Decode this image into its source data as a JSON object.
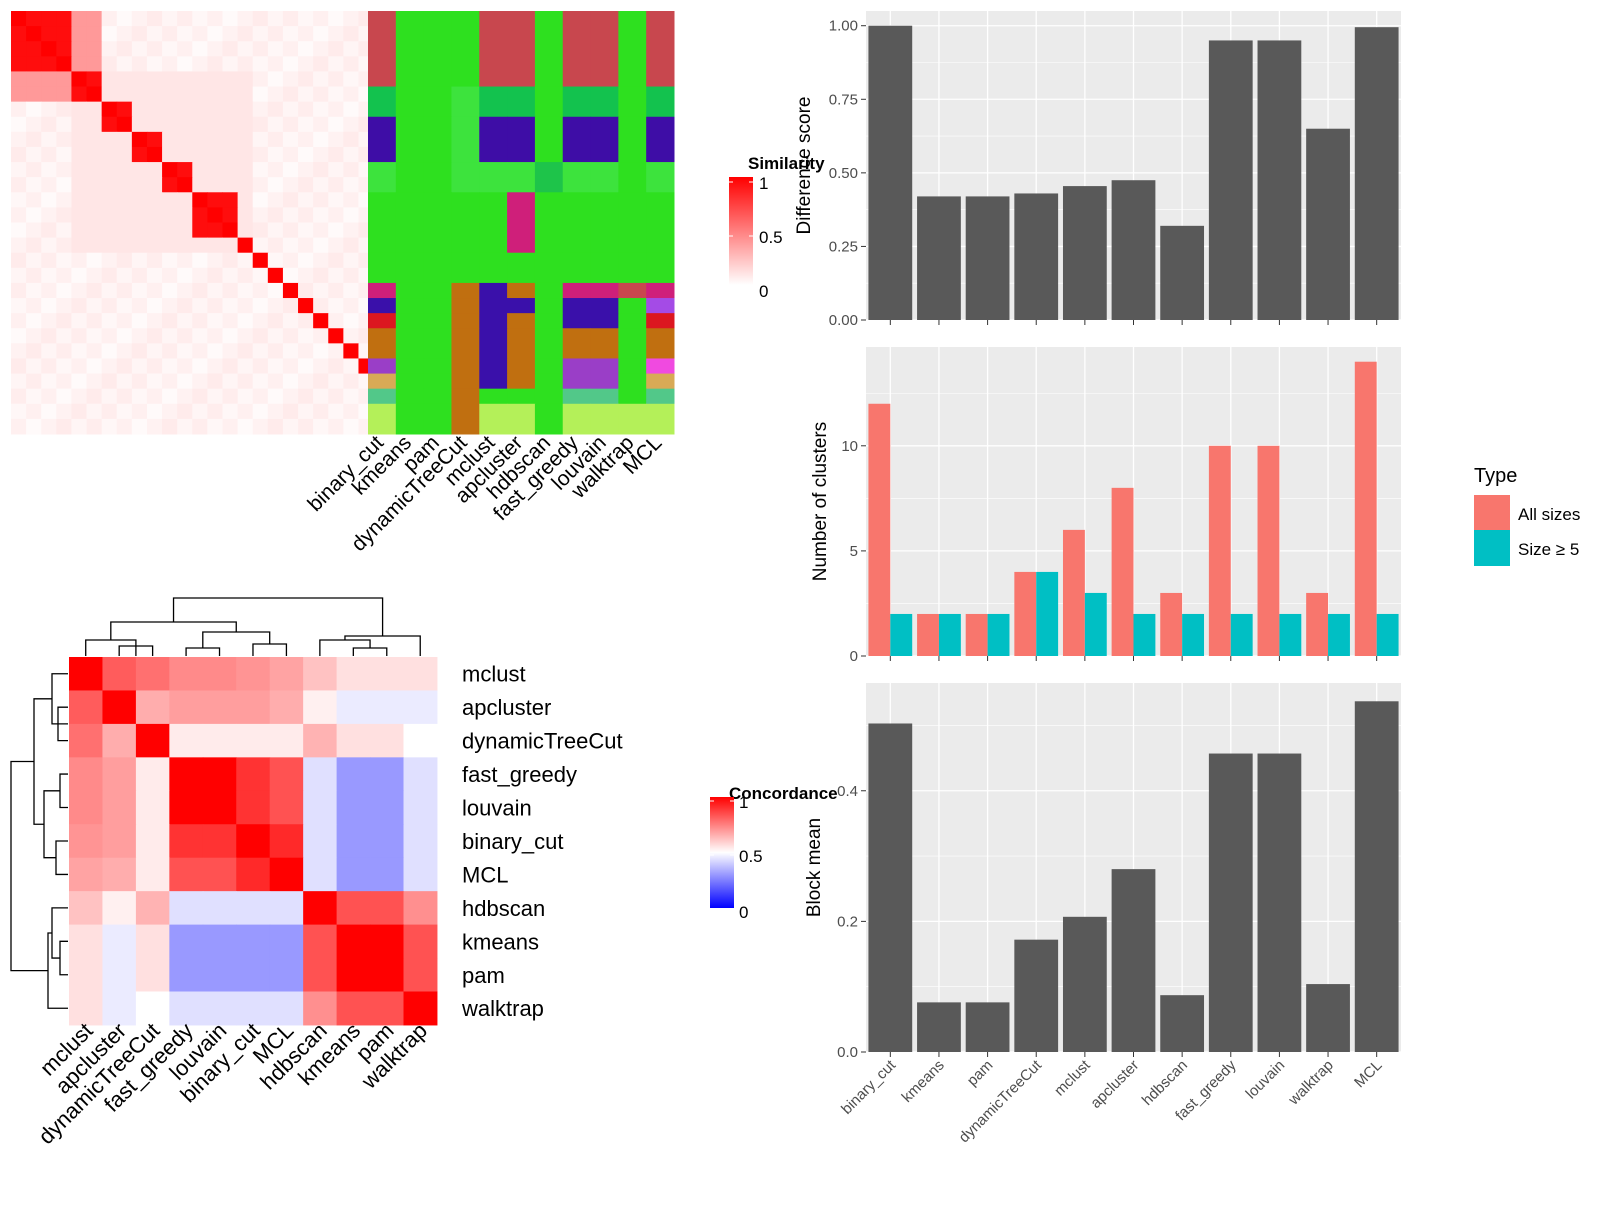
{
  "methods_order": [
    "binary_cut",
    "kmeans",
    "pam",
    "dynamicTreeCut",
    "mclust",
    "apcluster",
    "hdbscan",
    "fast_greedy",
    "louvain",
    "walktrap",
    "MCL"
  ],
  "colors": {
    "bar": "#595959",
    "panel_bg": "#ebebeb",
    "grid": "#ffffff",
    "all_sizes": "#f8766d",
    "size_ge5": "#00bfc4",
    "heat_high": "#ff0000",
    "heat_mid": "#ffffff",
    "heat_low": "#0000ff",
    "top_row": "#c8474e"
  },
  "similarity_heatmap": {
    "legend_title": "Similarity",
    "legend_ticks": [
      "1",
      "0.5",
      "0"
    ],
    "legend_values": [
      1,
      0.5,
      0
    ],
    "methods": [
      "binary_cut",
      "kmeans",
      "pam",
      "dynamicTreeCut",
      "mclust",
      "apcluster",
      "hdbscan",
      "fast_greedy",
      "louvain",
      "walktrap",
      "MCL"
    ],
    "n_items": 28,
    "diag_blocks": [
      [
        0,
        3
      ],
      [
        4,
        5
      ],
      [
        6,
        7
      ],
      [
        8,
        9
      ],
      [
        10,
        11
      ],
      [
        12,
        14
      ],
      [
        15,
        15
      ],
      [
        16,
        16
      ],
      [
        17,
        17
      ],
      [
        18,
        18
      ],
      [
        19,
        19
      ],
      [
        20,
        20
      ],
      [
        21,
        21
      ],
      [
        22,
        22
      ],
      [
        23,
        23
      ],
      [
        24,
        24
      ],
      [
        25,
        26
      ],
      [
        27,
        27
      ]
    ],
    "cluster_palette": [
      "#c8474e",
      "#13c24e",
      "#3e0da6",
      "#3de33d",
      "#2ee01f",
      "#1ec44a",
      "#cf1f7a",
      "#c06f10",
      "#c8474e",
      "#3a10aa",
      "#a44be6",
      "#dc1720",
      "#c06f10",
      "#f04ae0",
      "#9a3ec7",
      "#d8aa56",
      "#52c889",
      "#b4f059"
    ],
    "assignments": [
      [
        0,
        4,
        4,
        4,
        0,
        0,
        4,
        0,
        0,
        4,
        0
      ],
      [
        1,
        4,
        4,
        3,
        1,
        1,
        4,
        1,
        1,
        4,
        1
      ],
      [
        2,
        4,
        4,
        3,
        2,
        2,
        4,
        2,
        2,
        4,
        2
      ],
      [
        3,
        4,
        4,
        3,
        3,
        3,
        5,
        3,
        3,
        4,
        3
      ],
      [
        4,
        4,
        4,
        4,
        4,
        6,
        4,
        4,
        4,
        4,
        4
      ],
      [
        4,
        4,
        4,
        4,
        4,
        4,
        4,
        4,
        4,
        4,
        4
      ],
      [
        6,
        4,
        4,
        7,
        9,
        7,
        4,
        6,
        6,
        8,
        6
      ],
      [
        9,
        4,
        4,
        7,
        9,
        9,
        4,
        9,
        9,
        4,
        10
      ],
      [
        11,
        4,
        4,
        7,
        9,
        7,
        4,
        9,
        9,
        4,
        11
      ],
      [
        12,
        4,
        4,
        7,
        9,
        7,
        4,
        12,
        12,
        4,
        12
      ],
      [
        14,
        4,
        4,
        7,
        9,
        7,
        4,
        14,
        14,
        4,
        13
      ],
      [
        15,
        4,
        4,
        7,
        9,
        7,
        4,
        14,
        14,
        4,
        15
      ],
      [
        16,
        4,
        4,
        7,
        4,
        4,
        4,
        16,
        16,
        4,
        16
      ],
      [
        17,
        4,
        4,
        7,
        17,
        17,
        4,
        17,
        17,
        17,
        17
      ]
    ],
    "row_items": [
      [
        0,
        5
      ],
      [
        5,
        7
      ],
      [
        7,
        10
      ],
      [
        10,
        12
      ],
      [
        12,
        16
      ],
      [
        16,
        18
      ],
      [
        18,
        19
      ],
      [
        19,
        20
      ],
      [
        20,
        21
      ],
      [
        21,
        23
      ],
      [
        23,
        24
      ],
      [
        24,
        25
      ],
      [
        25,
        26
      ],
      [
        26,
        28
      ]
    ]
  },
  "concordance_heatmap": {
    "legend_title": "Concordance",
    "legend_ticks": [
      "1",
      "0.5",
      "0"
    ],
    "legend_values": [
      1,
      0.5,
      0
    ],
    "rows": [
      "mclust",
      "apcluster",
      "dynamicTreeCut",
      "fast_greedy",
      "louvain",
      "binary_cut",
      "MCL",
      "hdbscan",
      "kmeans",
      "pam",
      "walktrap"
    ],
    "cols": [
      "mclust",
      "apcluster",
      "dynamicTreeCut",
      "fast_greedy",
      "louvain",
      "binary_cut",
      "MCL",
      "hdbscan",
      "kmeans",
      "pam",
      "walktrap"
    ],
    "matrix": [
      [
        1.0,
        0.82,
        0.78,
        0.73,
        0.73,
        0.71,
        0.68,
        0.62,
        0.56,
        0.56,
        0.56
      ],
      [
        0.82,
        1.0,
        0.66,
        0.69,
        0.69,
        0.69,
        0.66,
        0.53,
        0.46,
        0.46,
        0.46
      ],
      [
        0.78,
        0.66,
        1.0,
        0.54,
        0.54,
        0.54,
        0.54,
        0.65,
        0.56,
        0.56,
        0.5
      ],
      [
        0.73,
        0.69,
        0.54,
        1.0,
        1.0,
        0.9,
        0.84,
        0.44,
        0.3,
        0.3,
        0.44
      ],
      [
        0.73,
        0.69,
        0.54,
        1.0,
        1.0,
        0.9,
        0.84,
        0.44,
        0.3,
        0.3,
        0.44
      ],
      [
        0.71,
        0.69,
        0.54,
        0.9,
        0.9,
        1.0,
        0.92,
        0.44,
        0.3,
        0.3,
        0.44
      ],
      [
        0.68,
        0.66,
        0.54,
        0.84,
        0.84,
        0.92,
        1.0,
        0.44,
        0.3,
        0.3,
        0.44
      ],
      [
        0.62,
        0.53,
        0.65,
        0.44,
        0.44,
        0.44,
        0.44,
        1.0,
        0.84,
        0.84,
        0.72
      ],
      [
        0.56,
        0.46,
        0.56,
        0.3,
        0.3,
        0.3,
        0.3,
        0.84,
        1.0,
        1.0,
        0.84
      ],
      [
        0.56,
        0.46,
        0.56,
        0.3,
        0.3,
        0.3,
        0.3,
        0.84,
        1.0,
        1.0,
        0.84
      ],
      [
        0.56,
        0.46,
        0.5,
        0.44,
        0.44,
        0.44,
        0.44,
        0.72,
        0.84,
        0.84,
        1.0
      ]
    ]
  },
  "chart_data": [
    {
      "type": "bar",
      "categories": [
        "binary_cut",
        "kmeans",
        "pam",
        "dynamicTreeCut",
        "mclust",
        "apcluster",
        "hdbscan",
        "fast_greedy",
        "louvain",
        "walktrap",
        "MCL"
      ],
      "values": [
        1.0,
        0.42,
        0.42,
        0.43,
        0.455,
        0.475,
        0.32,
        0.95,
        0.95,
        0.65,
        0.995
      ],
      "ylabel": "Difference score",
      "ylim": [
        0,
        1.05
      ],
      "yticks": [
        0,
        0.25,
        0.5,
        0.75,
        1.0
      ],
      "ytick_labels": [
        "0.00",
        "0.25",
        "0.50",
        "0.75",
        "1.00"
      ],
      "grid": true
    },
    {
      "type": "bar",
      "categories": [
        "binary_cut",
        "kmeans",
        "pam",
        "dynamicTreeCut",
        "mclust",
        "apcluster",
        "hdbscan",
        "fast_greedy",
        "louvain",
        "walktrap",
        "MCL"
      ],
      "series": [
        {
          "name": "All sizes",
          "values": [
            12,
            2,
            2,
            4,
            6,
            8,
            3,
            10,
            10,
            3,
            14
          ]
        },
        {
          "name": "Size ≥ 5",
          "values": [
            2,
            2,
            2,
            4,
            3,
            2,
            2,
            2,
            2,
            2,
            2
          ]
        }
      ],
      "ylabel": "Number of clusters",
      "ylim": [
        0,
        14.7
      ],
      "yticks": [
        0,
        5,
        10
      ],
      "ytick_labels": [
        "0",
        "5",
        "10"
      ],
      "legend_title": "Type",
      "legend_position": "right",
      "grid": true
    },
    {
      "type": "bar",
      "categories": [
        "binary_cut",
        "kmeans",
        "pam",
        "dynamicTreeCut",
        "mclust",
        "apcluster",
        "hdbscan",
        "fast_greedy",
        "louvain",
        "walktrap",
        "MCL"
      ],
      "values": [
        0.503,
        0.076,
        0.076,
        0.172,
        0.207,
        0.28,
        0.087,
        0.457,
        0.457,
        0.104,
        0.537
      ],
      "ylabel": "Block mean",
      "ylim": [
        0,
        0.565
      ],
      "yticks": [
        0,
        0.2,
        0.4
      ],
      "ytick_labels": [
        "0.0",
        "0.2",
        "0.4"
      ],
      "grid": true
    }
  ]
}
